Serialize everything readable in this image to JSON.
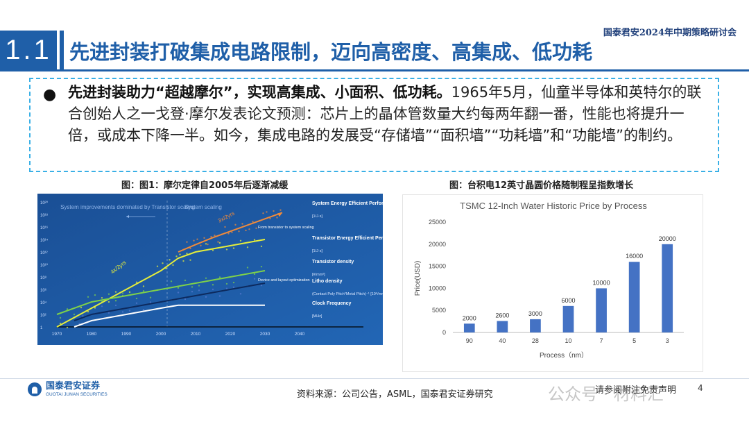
{
  "header": {
    "conference": "国泰君安2024年中期策略研讨会",
    "section_number": "1.1",
    "title": "先进封装打破集成电路限制，迈向高密度、高集成、低功耗"
  },
  "summary": {
    "bold_lead": "先进封装助力“超越摩尔”，实现高集成、小面积、低功耗。",
    "body": "1965年5月，仙童半导体和英特尔的联合创始人之一戈登·摩尔发表论文预测：芯片上的晶体管数量大约每两年翻一番，性能也将提升一倍，或成本下降一半。如今，集成电路的发展受“存储墙”“面积墙”“功耗墙”和“功能墙”的制约。"
  },
  "figure1": {
    "caption": "图：图1：摩尔定律自2005年后逐渐减缓",
    "chart_data": {
      "type": "line",
      "title": "",
      "xlabel": "",
      "ylabel": "",
      "x_ticks": [
        "1970",
        "1980",
        "1990",
        "2000",
        "2010",
        "2020",
        "2030",
        "2040"
      ],
      "y_ticks": [
        "1",
        "10²",
        "10⁴",
        "10⁶",
        "10⁸",
        "10¹⁰",
        "10¹²",
        "10¹⁴",
        "10¹⁶",
        "10¹⁸",
        "10²⁰"
      ],
      "annotations": {
        "left_region": "System improvements dominated by Transistor scaling",
        "right_region": "System scaling",
        "rate_a": "4x/2yrs",
        "rate_b": "3x/2yrs",
        "note_a": "From transistor to system scaling",
        "note_b": "Device and layout optimization"
      },
      "series": [
        {
          "name": "System Energy Efficient Performance",
          "unit": "[1/J·s]",
          "color": "#f08a3a",
          "x": [
            2005,
            2010,
            2015,
            2020,
            2025,
            2030,
            2035
          ],
          "y": [
            1000000000000.0,
            15000000000000.0,
            200000000000000.0,
            2000000000000000.0,
            2e+16,
            2e+17,
            2e+18
          ]
        },
        {
          "name": "Transistor Energy Efficient Performance",
          "unit": "[1/J·s]",
          "color": "#e6ee3a",
          "x": [
            1970,
            1980,
            1990,
            2000,
            2005,
            2010,
            2020,
            2030
          ],
          "y": [
            1,
            1000.0,
            1000000.0,
            1000000000.0,
            100000000000.0,
            1000000000000.0,
            10000000000000.0,
            100000000000000.0
          ]
        },
        {
          "name": "Transistor density",
          "unit": "[#/mm²]",
          "color": "#7ed14a",
          "x": [
            1970,
            1980,
            1990,
            2000,
            2010,
            2020,
            2030
          ],
          "y": [
            100,
            10000.0,
            100000.0,
            1000000.0,
            10000000.0,
            100000000.0,
            1000000000.0
          ]
        },
        {
          "name": "Litho density",
          "unit": "(Contact Poly Pitch*Metal Pitch)⁻¹ [10⁸/mm²]",
          "color": "#0d2a5e",
          "x": [
            1975,
            1980,
            1990,
            2000,
            2010,
            2020,
            2030
          ],
          "y": [
            10,
            100,
            1000.0,
            10000.0,
            100000.0,
            1000000.0,
            10000000.0
          ]
        },
        {
          "name": "Clock Frequency",
          "unit": "[MHz]",
          "color": "#ffffff",
          "x": [
            1975,
            1980,
            1990,
            2000,
            2005,
            2010,
            2020,
            2030
          ],
          "y": [
            1,
            10,
            100,
            1000.0,
            3000.0,
            3000.0,
            3000.0,
            3000.0
          ]
        }
      ]
    }
  },
  "figure2": {
    "caption": "图：台积电12英寸晶圆价格随制程呈指数增长",
    "chart_data": {
      "type": "bar",
      "title": "TSMC 12-Inch Water Historic Price by Process",
      "xlabel": "Process（nm）",
      "ylabel": "Price(USD)",
      "categories": [
        "90",
        "40",
        "28",
        "10",
        "7",
        "5",
        "3"
      ],
      "values": [
        2000,
        2600,
        3000,
        6000,
        10000,
        16000,
        20000
      ],
      "ylim": [
        0,
        25000
      ],
      "yticks": [
        0,
        5000,
        10000,
        15000,
        20000,
        25000
      ],
      "bar_color": "#4472c4",
      "grid": false
    }
  },
  "footer": {
    "company_cn": "国泰君安证券",
    "company_en": "GUOTAI JUNAN SECURITIES",
    "source": "资料来源：公司公告，ASML，国泰君安证券研究",
    "disclaimer": "请参阅附注免责声明",
    "page_number": "4",
    "watermark": "公众号 · 材料汇"
  }
}
